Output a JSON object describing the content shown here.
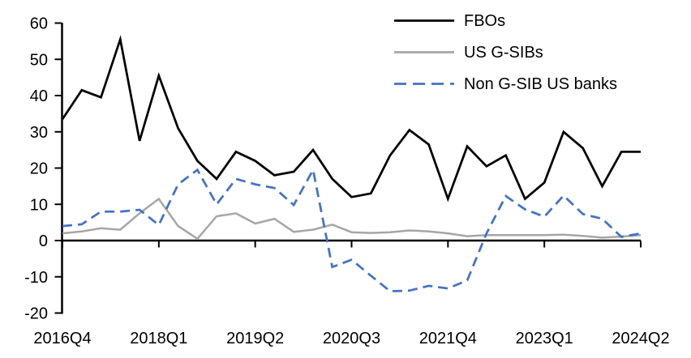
{
  "chart_data": {
    "type": "line",
    "title": "",
    "xlabel": "",
    "ylabel": "",
    "grid": false,
    "legend_position": "top-right",
    "background_color": "#ffffff",
    "axis_color": "#000000",
    "categories": [
      "2016Q4",
      "2017Q1",
      "2017Q2",
      "2017Q3",
      "2017Q4",
      "2018Q1",
      "2018Q2",
      "2018Q3",
      "2018Q4",
      "2019Q1",
      "2019Q2",
      "2019Q3",
      "2019Q4",
      "2020Q1",
      "2020Q2",
      "2020Q3",
      "2020Q4",
      "2021Q1",
      "2021Q2",
      "2021Q3",
      "2021Q4",
      "2022Q1",
      "2022Q2",
      "2022Q3",
      "2022Q4",
      "2023Q1",
      "2023Q2",
      "2023Q3",
      "2023Q4",
      "2024Q1",
      "2024Q2"
    ],
    "x_axis": {
      "tick_indices": [
        0,
        5,
        10,
        15,
        20,
        25,
        30
      ],
      "tick_labels": [
        "2016Q4",
        "2018Q1",
        "2019Q2",
        "2020Q3",
        "2021Q4",
        "2023Q1",
        "2024Q2"
      ]
    },
    "y_axis": {
      "min": -20,
      "max": 60,
      "step": 10,
      "tick_labels": [
        "60",
        "50",
        "40",
        "30",
        "20",
        "10",
        "0",
        "-10",
        "-20"
      ]
    },
    "series": [
      {
        "name": "FBOs",
        "color": "#000000",
        "style": "solid",
        "values": [
          33.5,
          41.5,
          39.5,
          55.5,
          27.5,
          45.5,
          31,
          22,
          17,
          24.5,
          22,
          18,
          19,
          25,
          17,
          12,
          13,
          23.5,
          30.5,
          26.5,
          11.5,
          26,
          20.5,
          23.5,
          11.5,
          16,
          30,
          25.5,
          15,
          24.5,
          24.5
        ]
      },
      {
        "name": "US G-SIBs",
        "color": "#a6a6a6",
        "style": "solid",
        "values": [
          2,
          2.5,
          3.4,
          3,
          7.5,
          11.5,
          4,
          0.5,
          6.7,
          7.5,
          4.7,
          6,
          2.4,
          3,
          4.4,
          2.3,
          2.1,
          2.3,
          2.8,
          2.5,
          2,
          1.2,
          1.5,
          1.5,
          1.5,
          1.5,
          1.6,
          1.3,
          0.8,
          1.1,
          1.5
        ]
      },
      {
        "name": "Non G-SIB US banks",
        "color": "#4472c4",
        "style": "dashed",
        "values": [
          4,
          4.5,
          8,
          8,
          8.5,
          4.3,
          15.5,
          19.5,
          10,
          17,
          15.5,
          14.5,
          9.8,
          19.5,
          -7.3,
          -5.3,
          -9.7,
          -14,
          -13.8,
          -12.5,
          -13.2,
          -11,
          2,
          12.3,
          8.6,
          6.6,
          12.4,
          7.3,
          6,
          1,
          2
        ]
      }
    ]
  }
}
